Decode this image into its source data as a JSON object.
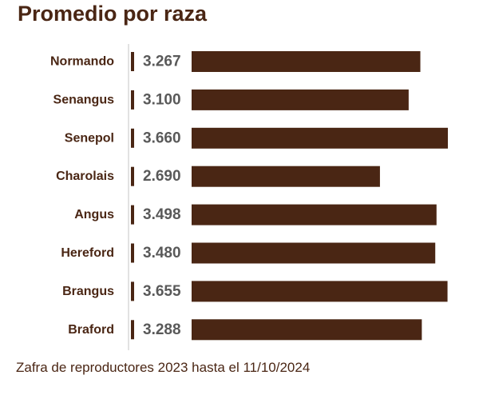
{
  "chart_data": {
    "type": "bar",
    "orientation": "horizontal",
    "title": "Promedio por raza",
    "categories": [
      "Normando",
      "Senangus",
      "Senepol",
      "Charolais",
      "Angus",
      "Hereford",
      "Brangus",
      "Braford"
    ],
    "series": [
      {
        "values": [
          3.267,
          3.1,
          3.66,
          2.69,
          3.498,
          3.48,
          3.655,
          3.288
        ],
        "labels": [
          "3.267",
          "3.100",
          "3.660",
          "2.690",
          "3.498",
          "3.480",
          "3.655",
          "3.288"
        ]
      }
    ],
    "xlim": [
      0,
      3.66
    ],
    "grid": false,
    "legend": "none",
    "bar_color": "#4a2614",
    "label_color": "#4a2614",
    "value_color": "#595959",
    "axis_color": "#d9d9d9"
  },
  "footnote": "Zafra de reproductores 2023 hasta el 11/10/2024"
}
